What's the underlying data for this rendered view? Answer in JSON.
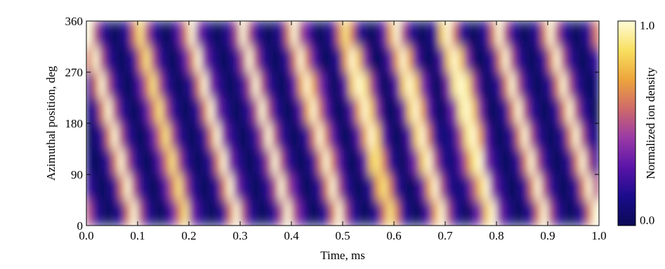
{
  "chart_data": {
    "type": "heatmap",
    "xlabel": "Time, ms",
    "ylabel": "Azimuthal position, deg",
    "colorbar_label": "Normalized ion density",
    "xlim": [
      0,
      1
    ],
    "ylim": [
      0,
      360
    ],
    "zlim": [
      0,
      1
    ],
    "xticks": [
      {
        "value": 0,
        "label": "0.0"
      },
      0.1,
      0.2,
      0.3,
      0.4,
      0.5,
      0.6,
      0.7,
      0.8,
      0.9,
      {
        "value": 1,
        "label": "1.0"
      }
    ],
    "yticks": [
      0,
      90,
      180,
      270,
      360
    ],
    "zticks": [
      {
        "value": 0,
        "label": "0.0"
      },
      {
        "value": 1,
        "label": "1.0"
      }
    ],
    "colormap": [
      "#0b0a55",
      "#1a0c8c",
      "#5a14a8",
      "#9a3aa6",
      "#cf6a6a",
      "#eda53c",
      "#f8e060",
      "#fffbd8"
    ],
    "z": [
      [
        0.5,
        0.2,
        0.1,
        0.0,
        0.1,
        0.2,
        0.6,
        1.0,
        0.5,
        0.2,
        0.1,
        0.0,
        0.1,
        0.3,
        0.6,
        0.9,
        0.4,
        0.2,
        0.1,
        0.0,
        0.1,
        0.2,
        0.6,
        1.0,
        0.5,
        0.2,
        0.1,
        0.0,
        0.1,
        0.2,
        0.5,
        1.0,
        0.5,
        0.3,
        0.1,
        0.0,
        0.1,
        0.2,
        0.6,
        1.0,
        0.5,
        0.2,
        0.1,
        0.0,
        0.1,
        0.2,
        0.6,
        0.9,
        0.6,
        0.2,
        0.1,
        0.0,
        0.1,
        0.3,
        0.7,
        1.0,
        0.5,
        0.2,
        0.1,
        0.0,
        0.2,
        0.4,
        0.8,
        1.0,
        0.4,
        0.2,
        0.1,
        0.0,
        0.1,
        0.2,
        0.6,
        1.0,
        0.5,
        0.2,
        0.1,
        0.0,
        0.1,
        0.2,
        0.6,
        1.0
      ],
      [
        0.2,
        0.1,
        0.0,
        0.1,
        0.2,
        0.6,
        1.0,
        0.5,
        0.2,
        0.1,
        0.0,
        0.1,
        0.3,
        0.6,
        0.9,
        0.5,
        0.2,
        0.1,
        0.0,
        0.1,
        0.2,
        0.6,
        1.0,
        0.4,
        0.2,
        0.1,
        0.0,
        0.1,
        0.2,
        0.5,
        1.0,
        0.5,
        0.3,
        0.1,
        0.0,
        0.1,
        0.2,
        0.6,
        1.0,
        0.5,
        0.2,
        0.1,
        0.0,
        0.1,
        0.2,
        0.7,
        0.9,
        0.6,
        0.2,
        0.1,
        0.0,
        0.1,
        0.3,
        0.7,
        1.0,
        0.5,
        0.2,
        0.1,
        0.1,
        0.2,
        0.5,
        0.8,
        1.0,
        0.4,
        0.2,
        0.1,
        0.0,
        0.1,
        0.2,
        0.6,
        1.0,
        0.5,
        0.2,
        0.1,
        0.0,
        0.1,
        0.2,
        0.6,
        1.0,
        0.5
      ],
      [
        0.1,
        0.0,
        0.1,
        0.2,
        0.6,
        1.0,
        0.5,
        0.2,
        0.1,
        0.0,
        0.1,
        0.3,
        0.6,
        0.9,
        0.5,
        0.2,
        0.1,
        0.0,
        0.1,
        0.2,
        0.6,
        1.0,
        0.4,
        0.2,
        0.1,
        0.0,
        0.1,
        0.2,
        0.5,
        1.0,
        0.5,
        0.2,
        0.1,
        0.0,
        0.1,
        0.2,
        0.6,
        1.0,
        0.6,
        0.3,
        0.1,
        0.0,
        0.1,
        0.3,
        0.8,
        0.9,
        0.6,
        0.2,
        0.1,
        0.0,
        0.2,
        0.4,
        0.8,
        1.0,
        0.5,
        0.2,
        0.1,
        0.1,
        0.3,
        0.6,
        0.9,
        1.0,
        0.4,
        0.2,
        0.1,
        0.0,
        0.1,
        0.2,
        0.6,
        1.0,
        0.5,
        0.2,
        0.1,
        0.0,
        0.1,
        0.2,
        0.6,
        1.0,
        0.5,
        0.2
      ],
      [
        0.0,
        0.1,
        0.2,
        0.6,
        1.0,
        0.5,
        0.2,
        0.1,
        0.0,
        0.1,
        0.3,
        0.6,
        0.9,
        0.5,
        0.2,
        0.1,
        0.0,
        0.1,
        0.2,
        0.6,
        1.0,
        0.4,
        0.2,
        0.1,
        0.0,
        0.1,
        0.2,
        0.5,
        1.0,
        0.5,
        0.2,
        0.1,
        0.0,
        0.1,
        0.2,
        0.6,
        1.0,
        0.6,
        0.3,
        0.1,
        0.0,
        0.1,
        0.3,
        0.7,
        1.0,
        0.8,
        0.3,
        0.1,
        0.0,
        0.1,
        0.3,
        0.8,
        1.0,
        0.6,
        0.2,
        0.1,
        0.1,
        0.2,
        0.5,
        0.9,
        1.0,
        0.7,
        0.3,
        0.1,
        0.0,
        0.1,
        0.2,
        0.6,
        1.0,
        0.5,
        0.2,
        0.1,
        0.0,
        0.1,
        0.2,
        0.6,
        1.0,
        0.5,
        0.2,
        0.1
      ],
      [
        0.1,
        0.2,
        0.6,
        1.0,
        0.5,
        0.2,
        0.1,
        0.0,
        0.1,
        0.3,
        0.6,
        0.9,
        0.5,
        0.2,
        0.1,
        0.0,
        0.1,
        0.2,
        0.6,
        1.0,
        0.4,
        0.2,
        0.1,
        0.0,
        0.1,
        0.2,
        0.5,
        1.0,
        0.5,
        0.2,
        0.1,
        0.0,
        0.1,
        0.3,
        0.7,
        1.0,
        0.6,
        0.3,
        0.1,
        0.0,
        0.1,
        0.3,
        0.7,
        1.0,
        0.8,
        0.4,
        0.1,
        0.0,
        0.1,
        0.3,
        0.8,
        1.0,
        0.7,
        0.3,
        0.1,
        0.0,
        0.2,
        0.4,
        0.9,
        1.0,
        0.8,
        0.4,
        0.1,
        0.0,
        0.1,
        0.2,
        0.6,
        1.0,
        0.5,
        0.2,
        0.1,
        0.0,
        0.1,
        0.2,
        0.6,
        1.0,
        0.5,
        0.2,
        0.1,
        0.0
      ],
      [
        0.2,
        0.6,
        1.0,
        0.5,
        0.2,
        0.1,
        0.0,
        0.1,
        0.3,
        0.6,
        0.9,
        0.5,
        0.2,
        0.1,
        0.0,
        0.1,
        0.2,
        0.6,
        1.0,
        0.4,
        0.2,
        0.1,
        0.0,
        0.1,
        0.2,
        0.5,
        1.0,
        0.5,
        0.2,
        0.1,
        0.0,
        0.1,
        0.3,
        0.7,
        1.0,
        0.7,
        0.4,
        0.2,
        0.0,
        0.1,
        0.3,
        0.8,
        1.0,
        0.9,
        0.5,
        0.2,
        0.0,
        0.1,
        0.3,
        0.8,
        1.0,
        0.8,
        0.4,
        0.2,
        0.0,
        0.1,
        0.4,
        0.9,
        1.0,
        0.9,
        0.5,
        0.2,
        0.0,
        0.1,
        0.2,
        0.6,
        1.0,
        0.5,
        0.2,
        0.1,
        0.0,
        0.1,
        0.2,
        0.6,
        1.0,
        0.5,
        0.2,
        0.1,
        0.0,
        0.1
      ],
      [
        0.6,
        1.0,
        0.5,
        0.2,
        0.1,
        0.0,
        0.1,
        0.2,
        0.6,
        0.9,
        0.5,
        0.2,
        0.1,
        0.0,
        0.1,
        0.3,
        0.6,
        1.0,
        0.4,
        0.2,
        0.1,
        0.0,
        0.1,
        0.2,
        0.5,
        1.0,
        0.5,
        0.2,
        0.1,
        0.0,
        0.1,
        0.2,
        0.6,
        1.0,
        0.6,
        0.3,
        0.1,
        0.0,
        0.1,
        0.2,
        0.7,
        1.0,
        0.8,
        0.4,
        0.1,
        0.0,
        0.1,
        0.3,
        0.7,
        1.0,
        0.7,
        0.3,
        0.1,
        0.0,
        0.1,
        0.3,
        0.8,
        1.0,
        0.8,
        0.4,
        0.1,
        0.0,
        0.1,
        0.2,
        0.6,
        1.0,
        0.5,
        0.2,
        0.1,
        0.0,
        0.1,
        0.2,
        0.6,
        1.0,
        0.5,
        0.2,
        0.1,
        0.0,
        0.1,
        0.2
      ],
      [
        1.0,
        0.5,
        0.2,
        0.1,
        0.0,
        0.1,
        0.2,
        0.6,
        0.9,
        0.5,
        0.2,
        0.1,
        0.0,
        0.1,
        0.3,
        0.6,
        1.0,
        0.4,
        0.2,
        0.1,
        0.0,
        0.1,
        0.2,
        0.5,
        1.0,
        0.5,
        0.2,
        0.1,
        0.0,
        0.1,
        0.2,
        0.6,
        1.0,
        0.5,
        0.3,
        0.1,
        0.0,
        0.1,
        0.2,
        0.6,
        0.9,
        0.6,
        0.2,
        0.1,
        0.0,
        0.1,
        0.3,
        0.7,
        1.0,
        0.5,
        0.2,
        0.1,
        0.0,
        0.1,
        0.2,
        0.8,
        1.0,
        0.6,
        0.2,
        0.1,
        0.0,
        0.1,
        0.2,
        0.6,
        1.0,
        0.5,
        0.2,
        0.1,
        0.0,
        0.1,
        0.2,
        0.6,
        1.0,
        0.5,
        0.2,
        0.1,
        0.0,
        0.1,
        0.2,
        0.6
      ]
    ]
  }
}
